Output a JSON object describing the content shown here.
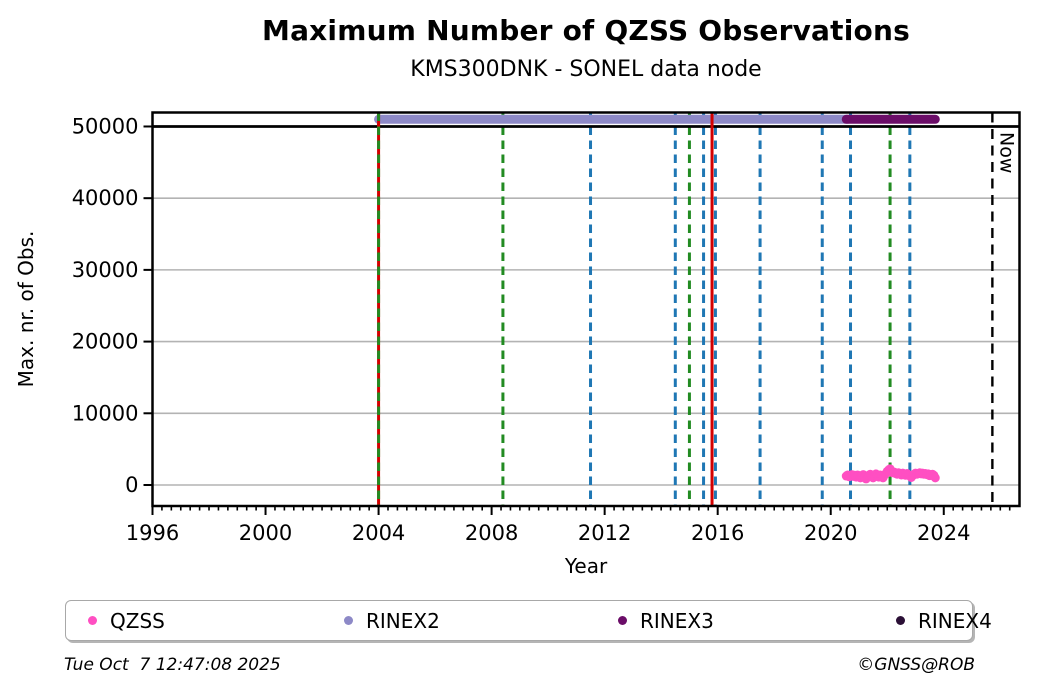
{
  "title": "Maximum Number of QZSS Observations",
  "subtitle": "KMS300DNK - SONEL data node",
  "footer": {
    "timestamp": "Tue Oct  7 12:47:08 2025",
    "credit": "©GNSS@ROB"
  },
  "legend": [
    {
      "label": "QZSS",
      "color": "#ff4fc2"
    },
    {
      "label": "RINEX2",
      "color": "#8d89c7"
    },
    {
      "label": "RINEX3",
      "color": "#6b0d68"
    },
    {
      "label": "RINEX4",
      "color": "#2b1036"
    }
  ],
  "chart_data": {
    "type": "scatter",
    "title": "Maximum Number of QZSS Observations",
    "subtitle": "KMS300DNK - SONEL data node",
    "xlabel": "Year",
    "ylabel": "Max. nr. of Obs.",
    "xlim": [
      1996,
      2026.68
    ],
    "ylim": [
      -2930,
      51950
    ],
    "xticks_major": [
      1996,
      2000,
      2004,
      2008,
      2012,
      2016,
      2020,
      2024
    ],
    "xtick_minor_step_years": 0.3333,
    "yticks": [
      0,
      10000,
      20000,
      30000,
      40000,
      50000
    ],
    "grid": true,
    "grid_color": "#b3b3b3",
    "reference_hline": {
      "value": 50000,
      "color": "#000000"
    },
    "now_line": {
      "year": 2025.72,
      "label": "Now",
      "color": "#000000",
      "style": "dashed"
    },
    "bands": [
      {
        "name": "RINEX2",
        "start": 2004.0,
        "end": 2020.6,
        "value": 51000,
        "color": "#8d89c7"
      },
      {
        "name": "RINEX3",
        "start": 2020.55,
        "end": 2023.7,
        "value": 51000,
        "color": "#6b0d68"
      }
    ],
    "event_lines": [
      {
        "year": 2004.0,
        "color": "#d40000",
        "style": "solid",
        "over_band": true
      },
      {
        "year": 2004.0,
        "color": "#228b22",
        "style": "dashed",
        "over_band": true
      },
      {
        "year": 2008.4,
        "color": "#228b22",
        "style": "dashed"
      },
      {
        "year": 2011.5,
        "color": "#1f77b4",
        "style": "dashed"
      },
      {
        "year": 2014.5,
        "color": "#1f77b4",
        "style": "dashed"
      },
      {
        "year": 2015.0,
        "color": "#228b22",
        "style": "dashed"
      },
      {
        "year": 2015.5,
        "color": "#1f77b4",
        "style": "dashed"
      },
      {
        "year": 2015.8,
        "color": "#d40000",
        "style": "solid",
        "over_band": true
      },
      {
        "year": 2015.92,
        "color": "#1f77b4",
        "style": "dashed"
      },
      {
        "year": 2017.5,
        "color": "#1f77b4",
        "style": "dashed"
      },
      {
        "year": 2019.7,
        "color": "#1f77b4",
        "style": "dashed"
      },
      {
        "year": 2020.7,
        "color": "#1f77b4",
        "style": "dashed"
      },
      {
        "year": 2022.1,
        "color": "#228b22",
        "style": "dashed"
      },
      {
        "year": 2022.8,
        "color": "#1f77b4",
        "style": "dashed"
      }
    ],
    "series": [
      {
        "name": "QZSS",
        "color": "#ff4fc2",
        "points": [
          [
            2020.55,
            1250
          ],
          [
            2020.6,
            1400
          ],
          [
            2020.65,
            1150
          ],
          [
            2020.7,
            1300
          ],
          [
            2020.75,
            1450
          ],
          [
            2020.8,
            1200
          ],
          [
            2020.85,
            1350
          ],
          [
            2020.9,
            1100
          ],
          [
            2020.95,
            1400
          ],
          [
            2021.0,
            1250
          ],
          [
            2021.05,
            1000
          ],
          [
            2021.1,
            1300
          ],
          [
            2021.15,
            1450
          ],
          [
            2021.2,
            1150
          ],
          [
            2021.25,
            850
          ],
          [
            2021.3,
            1050
          ],
          [
            2021.35,
            1350
          ],
          [
            2021.4,
            1500
          ],
          [
            2021.45,
            1250
          ],
          [
            2021.5,
            1000
          ],
          [
            2021.55,
            1300
          ],
          [
            2021.6,
            1550
          ],
          [
            2021.65,
            1350
          ],
          [
            2021.7,
            1100
          ],
          [
            2021.75,
            1400
          ],
          [
            2021.8,
            1250
          ],
          [
            2021.85,
            1000
          ],
          [
            2021.9,
            1350
          ],
          [
            2021.95,
            1600
          ],
          [
            2022.0,
            1900
          ],
          [
            2022.05,
            2100
          ],
          [
            2022.1,
            2250
          ],
          [
            2022.15,
            1950
          ],
          [
            2022.2,
            1700
          ],
          [
            2022.25,
            1800
          ],
          [
            2022.3,
            1600
          ],
          [
            2022.35,
            1500
          ],
          [
            2022.4,
            1700
          ],
          [
            2022.45,
            1550
          ],
          [
            2022.5,
            1400
          ],
          [
            2022.55,
            1650
          ],
          [
            2022.6,
            1500
          ],
          [
            2022.65,
            1350
          ],
          [
            2022.7,
            1600
          ],
          [
            2022.75,
            1450
          ],
          [
            2022.8,
            1250
          ],
          [
            2022.85,
            1050
          ],
          [
            2022.9,
            1300
          ],
          [
            2022.95,
            1500
          ],
          [
            2023.0,
            1650
          ],
          [
            2023.05,
            1500
          ],
          [
            2023.1,
            1600
          ],
          [
            2023.15,
            1700
          ],
          [
            2023.2,
            1550
          ],
          [
            2023.25,
            1650
          ],
          [
            2023.3,
            1500
          ],
          [
            2023.35,
            1600
          ],
          [
            2023.4,
            1450
          ],
          [
            2023.45,
            1550
          ],
          [
            2023.5,
            1300
          ],
          [
            2023.55,
            1450
          ],
          [
            2023.6,
            1500
          ],
          [
            2023.65,
            1350
          ],
          [
            2023.7,
            1000
          ]
        ]
      }
    ]
  }
}
